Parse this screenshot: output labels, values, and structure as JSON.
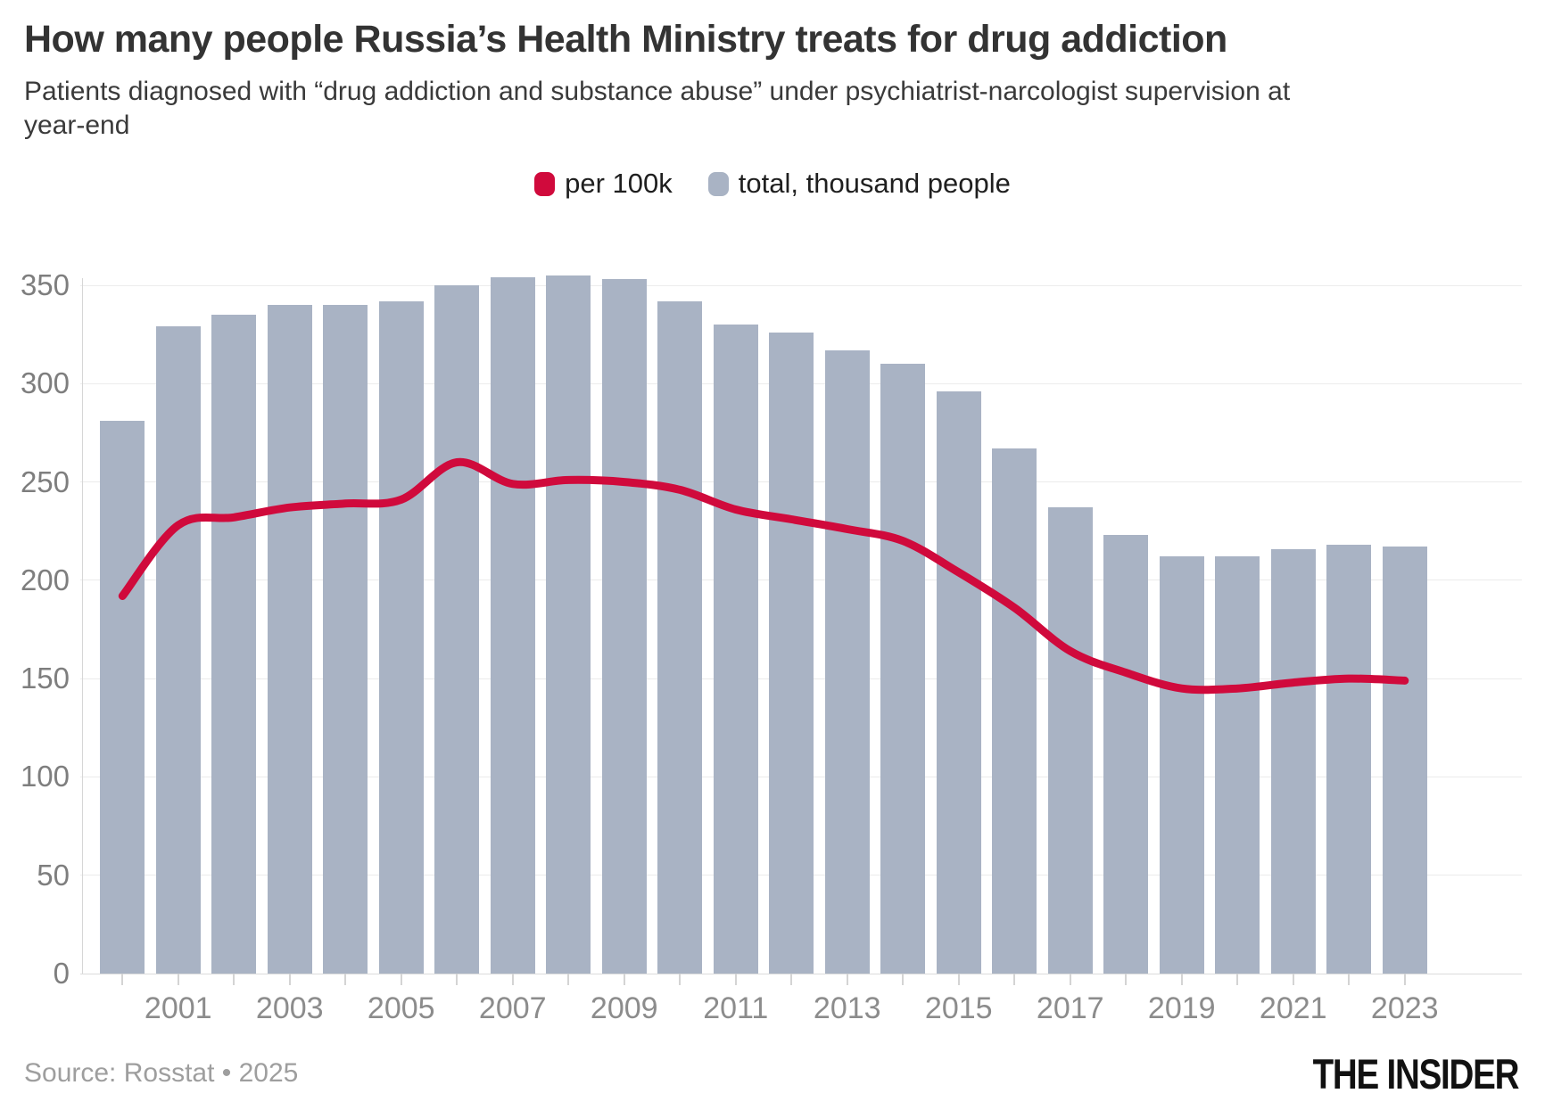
{
  "header": {
    "title": "How many people Russia’s Health Ministry treats for drug addiction",
    "subtitle": "Patients diagnosed with “drug addiction and substance abuse” under psychiatrist-narcologist supervision at year-end"
  },
  "legend": {
    "items": [
      {
        "label": "per 100k",
        "color": "#d00a3c"
      },
      {
        "label": "total, thousand people",
        "color": "#a9b3c4"
      }
    ]
  },
  "chart_data": {
    "type": "bar",
    "title": "How many people Russia’s Health Ministry treats for drug addiction",
    "categories": [
      2000,
      2001,
      2002,
      2003,
      2004,
      2005,
      2006,
      2007,
      2008,
      2009,
      2010,
      2011,
      2012,
      2013,
      2014,
      2015,
      2016,
      2017,
      2018,
      2019,
      2020,
      2021,
      2022,
      2023
    ],
    "series": [
      {
        "name": "total, thousand people",
        "type": "bar",
        "color": "#a9b3c4",
        "values": [
          281,
          329,
          335,
          340,
          340,
          342,
          350,
          354,
          355,
          353,
          342,
          330,
          326,
          317,
          310,
          296,
          267,
          237,
          223,
          212,
          212,
          216,
          218,
          217
        ]
      },
      {
        "name": "per 100k",
        "type": "line",
        "color": "#d00a3c",
        "values": [
          192,
          228,
          232,
          237,
          239,
          241,
          260,
          249,
          251,
          250,
          246,
          236,
          231,
          226,
          220,
          204,
          186,
          164,
          153,
          145,
          145,
          148,
          150,
          149
        ]
      }
    ],
    "xlabel": "",
    "ylabel": "",
    "ylim": [
      0,
      350
    ],
    "y_ticks": [
      0,
      50,
      100,
      150,
      200,
      250,
      300,
      350
    ],
    "x_labeled_years": [
      2001,
      2003,
      2005,
      2007,
      2009,
      2011,
      2013,
      2015,
      2017,
      2019,
      2021,
      2023
    ],
    "grid": true,
    "legend_position": "top-center"
  },
  "footer": {
    "source": "Source: Rosstat • 2025",
    "logo": "THE INSIDER"
  }
}
